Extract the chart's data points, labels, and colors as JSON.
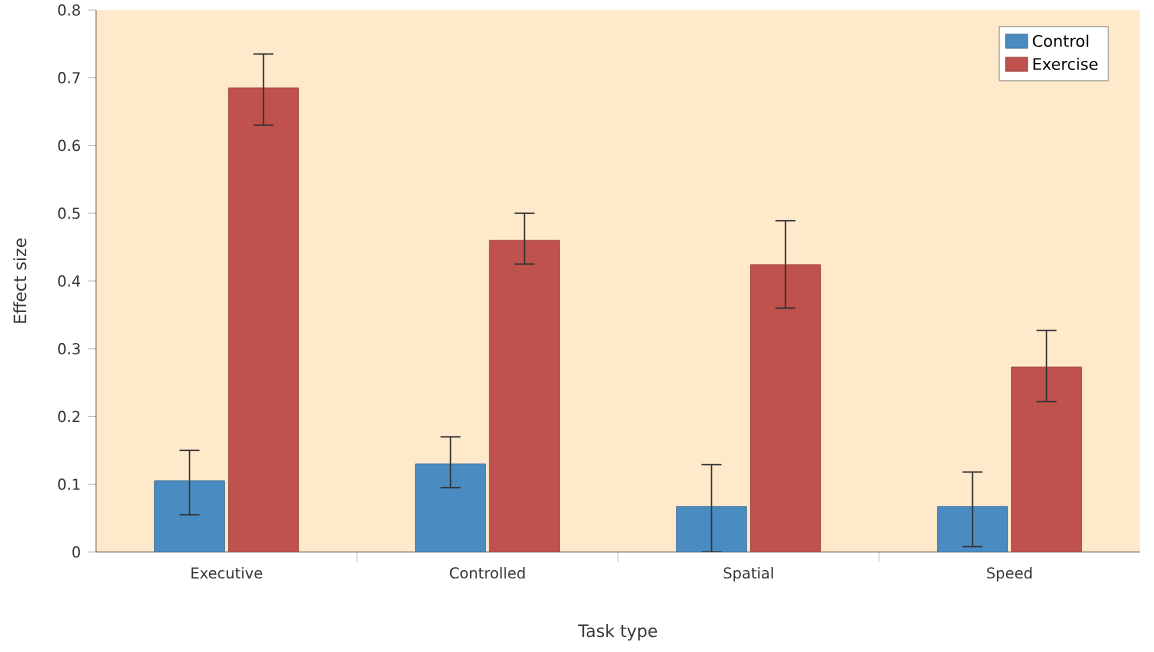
{
  "chart_data": {
    "type": "bar",
    "xlabel": "Task type",
    "ylabel": "Effect size",
    "categories": [
      "Executive",
      "Controlled",
      "Spatial",
      "Speed"
    ],
    "series": [
      {
        "name": "Control",
        "color": "#4a8cc2",
        "values": [
          0.105,
          0.13,
          0.067,
          0.067
        ],
        "errors": [
          [
            0.055,
            0.15
          ],
          [
            0.095,
            0.17
          ],
          [
            0.0,
            0.129
          ],
          [
            0.008,
            0.118
          ]
        ]
      },
      {
        "name": "Exercise",
        "color": "#c0524e",
        "values": [
          0.685,
          0.46,
          0.424,
          0.273
        ],
        "errors": [
          [
            0.63,
            0.735
          ],
          [
            0.425,
            0.5
          ],
          [
            0.36,
            0.489
          ],
          [
            0.222,
            0.327
          ]
        ]
      }
    ],
    "ylim": [
      0,
      0.8
    ],
    "yticks": [
      0,
      0.1,
      0.2,
      0.3,
      0.4,
      0.5,
      0.6,
      0.7,
      0.8
    ],
    "legend": "top right",
    "grid": false
  }
}
